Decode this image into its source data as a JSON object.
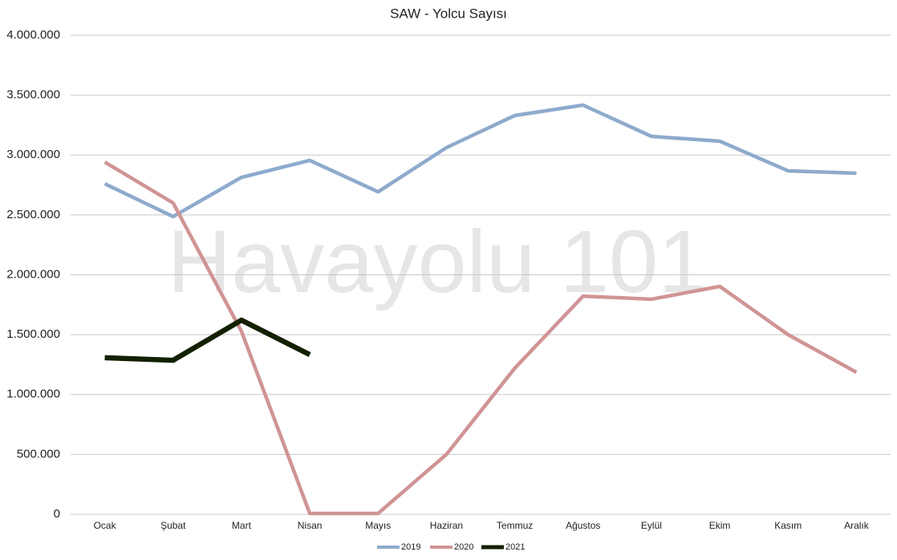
{
  "chart_data": {
    "type": "line",
    "title": "SAW - Yolcu Sayısı",
    "watermark": "Havayolu 101",
    "categories": [
      "Ocak",
      "Şubat",
      "Mart",
      "Nisan",
      "Mayıs",
      "Haziran",
      "Temmuz",
      "Ağustos",
      "Eylül",
      "Ekim",
      "Kasım",
      "Aralık"
    ],
    "series": [
      {
        "name": "2019",
        "color": "#8eaacc",
        "values": [
          2760000,
          2486000,
          2814000,
          2955000,
          2693000,
          3062000,
          3330000,
          3417000,
          3156000,
          3116000,
          2868000,
          2848000
        ]
      },
      {
        "name": "2020",
        "color": "#d09494",
        "values": [
          2941000,
          2600000,
          1528000,
          7000,
          7000,
          500000,
          1220000,
          1822000,
          1796000,
          1903000,
          1500000,
          1186000
        ]
      },
      {
        "name": "2021",
        "color": "#132000",
        "values": [
          1307000,
          1286000,
          1621000,
          1333000,
          null,
          null,
          null,
          null,
          null,
          null,
          null,
          null
        ]
      }
    ],
    "ylim": [
      0,
      4000000
    ],
    "yticks": [
      0,
      {
        "value": 500000,
        "label": "500.000"
      },
      {
        "value": 1000000,
        "label": "1.000.000"
      },
      {
        "value": 1500000,
        "label": "1.500.000"
      },
      {
        "value": 2000000,
        "label": "2.000.000"
      },
      {
        "value": 2500000,
        "label": "2.500.000"
      },
      {
        "value": 3000000,
        "label": "3.000.000"
      },
      {
        "value": 3500000,
        "label": "3.500.000"
      },
      {
        "value": 4000000,
        "label": "4.000.000"
      }
    ],
    "grid": true,
    "legend": "bottom"
  }
}
